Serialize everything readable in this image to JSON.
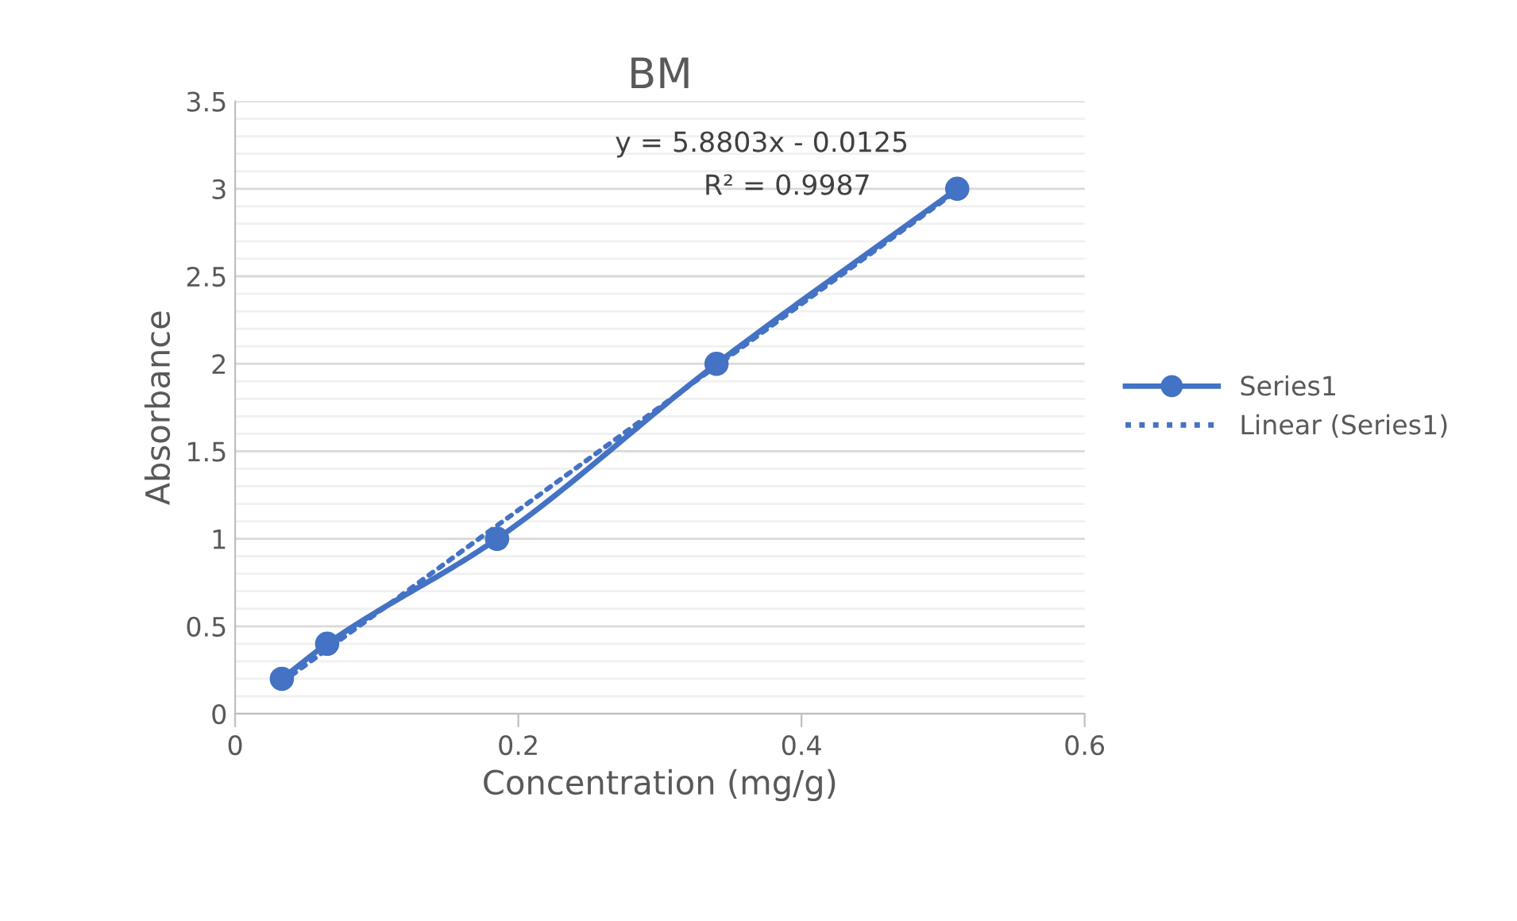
{
  "chart_data": {
    "type": "line",
    "title": "BM",
    "xlabel": "Concentration (mg/g)",
    "ylabel": "Absorbance",
    "series": [
      {
        "name": "Series1",
        "color": "#4472c4",
        "marker": "circle",
        "line_style": "solid",
        "x": [
          0.033,
          0.065,
          0.185,
          0.34,
          0.51
        ],
        "values": [
          0.2,
          0.4,
          1,
          2,
          3
        ]
      },
      {
        "name": "Linear (Series1)",
        "color": "#4472c4",
        "marker": "none",
        "line_style": "dotted",
        "x": [
          0.033,
          0.51
        ],
        "values": [
          0.18,
          2.99
        ]
      }
    ],
    "annotations": [
      "y = 5.8803x - 0.0125",
      "R² = 0.9987"
    ],
    "xlim": [
      0,
      0.6
    ],
    "xticks": [
      0,
      0.2,
      0.4,
      0.6
    ],
    "ylim": [
      0,
      3.5
    ],
    "yticks": [
      0,
      {
        "value": 0.1,
        "label": null
      },
      {
        "value": 0.2,
        "label": null
      },
      {
        "value": 0.3,
        "label": null
      },
      {
        "value": 0.4,
        "label": null
      },
      0.5,
      {
        "value": 0.6,
        "label": null
      },
      {
        "value": 0.7,
        "label": null
      },
      {
        "value": 0.8,
        "label": null
      },
      {
        "value": 0.9,
        "label": null
      },
      1,
      {
        "value": 1.1,
        "label": null
      },
      {
        "value": 1.2,
        "label": null
      },
      {
        "value": 1.3,
        "label": null
      },
      {
        "value": 1.4,
        "label": null
      },
      1.5,
      {
        "value": 1.6,
        "label": null
      },
      {
        "value": 1.7,
        "label": null
      },
      {
        "value": 1.8,
        "label": null
      },
      {
        "value": 1.9,
        "label": null
      },
      2,
      {
        "value": 2.1,
        "label": null
      },
      {
        "value": 2.2,
        "label": null
      },
      {
        "value": 2.3,
        "label": null
      },
      {
        "value": 2.4,
        "label": null
      },
      2.5,
      {
        "value": 2.6,
        "label": null
      },
      {
        "value": 2.7,
        "label": null
      },
      {
        "value": 2.8,
        "label": null
      },
      {
        "value": 2.9,
        "label": null
      },
      3,
      {
        "value": 3.1,
        "label": null
      },
      {
        "value": 3.2,
        "label": null
      },
      {
        "value": 3.3,
        "label": null
      },
      {
        "value": 3.4,
        "label": null
      },
      3.5
    ],
    "grid": "y",
    "legend": "right"
  }
}
